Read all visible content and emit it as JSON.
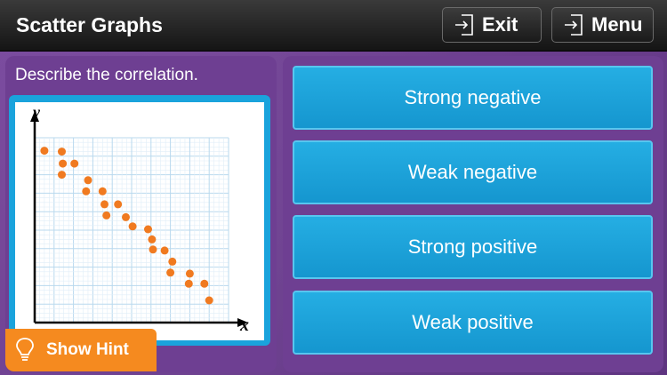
{
  "header": {
    "title": "Scatter Graphs",
    "exit_label": "Exit",
    "menu_label": "Menu"
  },
  "question": {
    "prompt": "Describe the correlation."
  },
  "graph": {
    "y_label": "y",
    "x_label": "x"
  },
  "chart_data": {
    "type": "scatter",
    "title": "",
    "xlabel": "x",
    "ylabel": "y",
    "xlim": [
      0,
      20
    ],
    "ylim": [
      0,
      20
    ],
    "grid": true,
    "points": [
      [
        1,
        18.6
      ],
      [
        2.8,
        18.5
      ],
      [
        2.9,
        17.2
      ],
      [
        4.1,
        17.2
      ],
      [
        2.8,
        16
      ],
      [
        5.5,
        15.4
      ],
      [
        5.3,
        14.2
      ],
      [
        7,
        14.2
      ],
      [
        7.2,
        12.8
      ],
      [
        8.6,
        12.8
      ],
      [
        7.4,
        11.6
      ],
      [
        9.4,
        11.4
      ],
      [
        10.1,
        10.4
      ],
      [
        11.7,
        10.1
      ],
      [
        12.1,
        9
      ],
      [
        12.2,
        7.9
      ],
      [
        13.4,
        7.8
      ],
      [
        14.2,
        6.6
      ],
      [
        14,
        5.4
      ],
      [
        16,
        5.3
      ],
      [
        15.9,
        4.2
      ],
      [
        17.5,
        4.2
      ],
      [
        18,
        2.4
      ]
    ],
    "point_color": "#f07a20"
  },
  "hint": {
    "label": "Show Hint"
  },
  "answers": [
    {
      "label": "Strong negative"
    },
    {
      "label": "Weak negative"
    },
    {
      "label": "Strong positive"
    },
    {
      "label": "Weak positive"
    }
  ],
  "colors": {
    "accent_blue": "#1aa3dc",
    "answer_blue": "#1596cf",
    "hint_orange": "#f58a1f",
    "background_purple": "#6a3d8c"
  },
  "icons": {
    "exit": "exit-arrow-icon",
    "menu": "menu-arrow-icon",
    "hint": "lightbulb-icon"
  }
}
